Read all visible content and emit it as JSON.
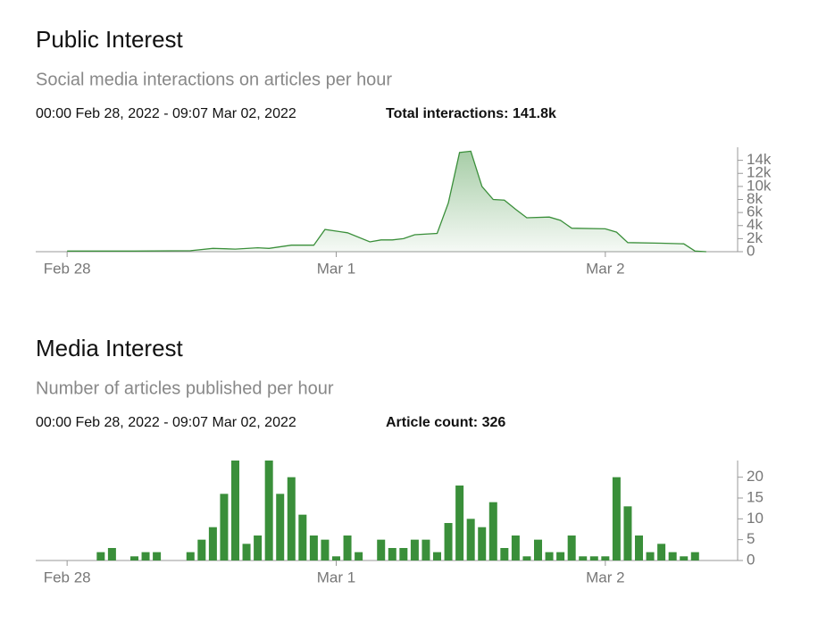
{
  "chart_data": [
    {
      "type": "area",
      "title": "Public Interest",
      "subtitle": "Social media interactions on articles per hour",
      "date_range": "00:00 Feb 28, 2022 - 09:07 Mar 02, 2022",
      "total": "Total interactions: 141.8k",
      "color": "#3a8f3a",
      "x": [
        0,
        6,
        11,
        13,
        15,
        17,
        18,
        20,
        22,
        23,
        25,
        27,
        28,
        29,
        30,
        31,
        33,
        34,
        35,
        36,
        37,
        38,
        39,
        40,
        41,
        43,
        44,
        45,
        48,
        49,
        50,
        53,
        55,
        56,
        57
      ],
      "values": [
        100,
        100,
        150,
        500,
        400,
        600,
        500,
        1000,
        1000,
        3400,
        2900,
        1500,
        1800,
        1800,
        2000,
        2600,
        2800,
        7500,
        15200,
        15400,
        10000,
        8000,
        7900,
        6500,
        5200,
        5300,
        4800,
        3600,
        3500,
        3000,
        1400,
        1300,
        1200,
        100,
        0
      ],
      "xlim": [
        -2.8,
        59.8
      ],
      "xticks": [
        {
          "value": 0,
          "label": "Feb 28"
        },
        {
          "value": 24,
          "label": "Mar 1"
        },
        {
          "value": 48,
          "label": "Mar 2"
        }
      ],
      "ylim": [
        0,
        16000
      ],
      "yticks": [
        0,
        {
          "value": 2000,
          "label": "2k"
        },
        {
          "value": 4000,
          "label": "4k"
        },
        {
          "value": 6000,
          "label": "6k"
        },
        {
          "value": 8000,
          "label": "8k"
        },
        {
          "value": 10000,
          "label": "10k"
        },
        {
          "value": 12000,
          "label": "12k"
        },
        {
          "value": 14000,
          "label": "14k"
        }
      ]
    },
    {
      "type": "bar",
      "title": "Media Interest",
      "subtitle": "Number of articles published per hour",
      "date_range": "00:00 Feb 28, 2022 - 09:07 Mar 02, 2022",
      "total": "Article count: 326",
      "color": "#3a8f3a",
      "x": [
        3,
        4,
        6,
        7,
        8,
        11,
        12,
        13,
        14,
        15,
        16,
        17,
        18,
        19,
        20,
        21,
        22,
        23,
        24,
        25,
        26,
        28,
        29,
        30,
        31,
        32,
        33,
        34,
        35,
        36,
        37,
        38,
        39,
        40,
        41,
        42,
        43,
        44,
        45,
        46,
        47,
        48,
        49,
        50,
        51,
        52,
        53,
        54,
        55,
        56
      ],
      "values": [
        2,
        3,
        1,
        2,
        2,
        2,
        5,
        8,
        16,
        24,
        4,
        6,
        24,
        16,
        20,
        11,
        6,
        5,
        1,
        6,
        2,
        5,
        3,
        3,
        5,
        5,
        2,
        9,
        18,
        10,
        8,
        14,
        3,
        6,
        1,
        5,
        2,
        2,
        6,
        1,
        1,
        1,
        20,
        13,
        6,
        2,
        4,
        2,
        1,
        2
      ],
      "xlim": [
        -2.8,
        59.8
      ],
      "xticks": [
        {
          "value": 0,
          "label": "Feb 28"
        },
        {
          "value": 24,
          "label": "Mar 1"
        },
        {
          "value": 48,
          "label": "Mar 2"
        }
      ],
      "ylim": [
        0,
        24
      ],
      "yticks": [
        0,
        5,
        10,
        15,
        20
      ]
    }
  ]
}
